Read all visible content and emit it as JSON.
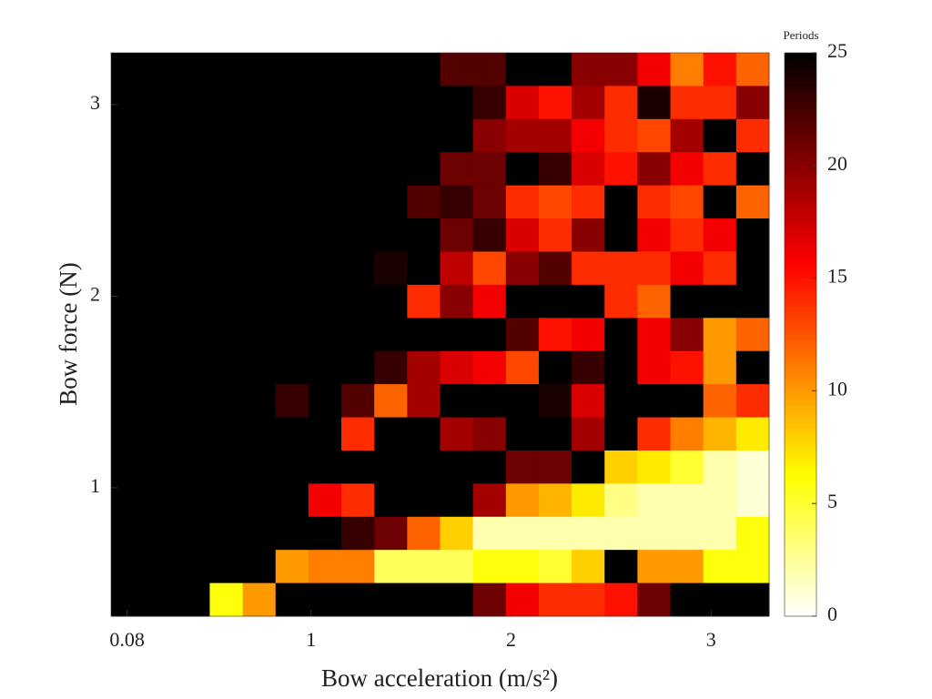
{
  "chart_data": {
    "type": "heatmap",
    "xlabel": "Bow acceleration (m/s²)",
    "ylabel": "Bow force (N)",
    "colorbar_title": "Periods",
    "colormap": "hot_r",
    "xlim": [
      0,
      3.29
    ],
    "ylim": [
      0.33,
      3.27
    ],
    "xticks": [
      0.08,
      1,
      2,
      3
    ],
    "yticks": [
      1,
      2,
      3
    ],
    "clim": [
      0,
      25
    ],
    "cticks": [
      0,
      5,
      10,
      15,
      20,
      25
    ],
    "z": [
      [
        25,
        25,
        25,
        25,
        25,
        25,
        25,
        25,
        25,
        25,
        22,
        22,
        25,
        25,
        20,
        20,
        16,
        11,
        15,
        12
      ],
      [
        25,
        25,
        25,
        25,
        25,
        25,
        25,
        25,
        25,
        25,
        25,
        23,
        17,
        15,
        19,
        14,
        24,
        14,
        14,
        20
      ],
      [
        25,
        25,
        25,
        25,
        25,
        25,
        25,
        25,
        25,
        25,
        25,
        20,
        19,
        19,
        16,
        14,
        13,
        19,
        25,
        14
      ],
      [
        25,
        25,
        25,
        25,
        25,
        25,
        25,
        25,
        25,
        25,
        21,
        21,
        25,
        23,
        17,
        15,
        20,
        16,
        14,
        25
      ],
      [
        25,
        25,
        25,
        25,
        25,
        25,
        25,
        25,
        25,
        22,
        23,
        21,
        14,
        13,
        14,
        25,
        14,
        13,
        25,
        12
      ],
      [
        25,
        25,
        25,
        25,
        25,
        25,
        25,
        25,
        25,
        25,
        21,
        23,
        17,
        14,
        20,
        25,
        16,
        14,
        16,
        25
      ],
      [
        25,
        25,
        25,
        25,
        25,
        25,
        25,
        25,
        24,
        25,
        18,
        13,
        20,
        22,
        14,
        14,
        14,
        16,
        14,
        25
      ],
      [
        25,
        25,
        25,
        25,
        25,
        25,
        25,
        25,
        25,
        14,
        20,
        16,
        25,
        25,
        25,
        14,
        12,
        25,
        25,
        25
      ],
      [
        25,
        25,
        25,
        25,
        25,
        25,
        25,
        25,
        25,
        25,
        25,
        25,
        22,
        15,
        16,
        25,
        16,
        20,
        10,
        12
      ],
      [
        25,
        25,
        25,
        25,
        25,
        25,
        25,
        25,
        23,
        19,
        17,
        16,
        13,
        25,
        23,
        25,
        16,
        15,
        10,
        25
      ],
      [
        25,
        25,
        25,
        25,
        25,
        23,
        25,
        22,
        12,
        19,
        25,
        25,
        25,
        24,
        17,
        25,
        25,
        25,
        12,
        14
      ],
      [
        25,
        25,
        25,
        25,
        25,
        25,
        25,
        14,
        25,
        25,
        19,
        20,
        25,
        25,
        19,
        25,
        14,
        11,
        9,
        7
      ],
      [
        25,
        25,
        25,
        25,
        25,
        25,
        25,
        25,
        25,
        25,
        25,
        25,
        21,
        21,
        25,
        8,
        7,
        5,
        2,
        1
      ],
      [
        25,
        25,
        25,
        25,
        25,
        25,
        16,
        14,
        25,
        25,
        25,
        19,
        10,
        9,
        7,
        3,
        2,
        2,
        2,
        1
      ],
      [
        25,
        25,
        25,
        25,
        25,
        25,
        25,
        23,
        21,
        12,
        8,
        2,
        2,
        2,
        2,
        2,
        2,
        2,
        2,
        6
      ],
      [
        25,
        25,
        25,
        25,
        25,
        10,
        11,
        11,
        4,
        4,
        4,
        6,
        6,
        5,
        8,
        25,
        10,
        10,
        6,
        6
      ],
      [
        25,
        25,
        25,
        6,
        10,
        25,
        25,
        25,
        25,
        25,
        25,
        21,
        16,
        14,
        14,
        15,
        21,
        25,
        25,
        25
      ]
    ]
  }
}
